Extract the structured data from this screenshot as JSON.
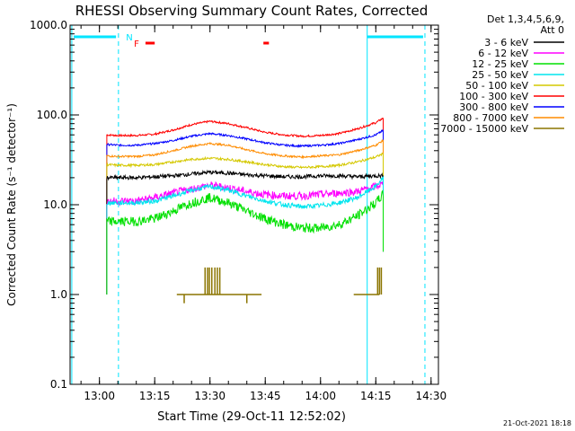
{
  "colors": {
    "background": "#ffffff",
    "axis": "#000000",
    "marker": "#00e5ff",
    "flare_flag": "#ff0000"
  },
  "chart_data": {
    "type": "line",
    "title": "RHESSI Observing Summary Count Rates, Corrected",
    "xlabel": "Start Time (29-Oct-11 12:52:02)",
    "ylabel": "Corrected Count Rate (s⁻¹ detector⁻¹)",
    "y_scale": "log",
    "ylim": [
      0.1,
      1000
    ],
    "xlim": [
      "12:52:02",
      "14:32:00"
    ],
    "grid": false,
    "x_ticks": [
      "13:00",
      "13:15",
      "13:30",
      "13:45",
      "14:00",
      "14:15",
      "14:30"
    ],
    "y_ticks": [
      "0.1",
      "1.0",
      "10.0",
      "100.0",
      "1000.0"
    ],
    "legend": {
      "placement": "right",
      "header_lines": [
        "Det 1,3,4,5,6,9,",
        "Att 0"
      ]
    },
    "flags": {
      "night_label": "N",
      "flare_label": "F"
    },
    "footer_date": "21-Oct-2021 18:18",
    "x_times": [
      "13:02",
      "13:05",
      "13:10",
      "13:15",
      "13:20",
      "13:25",
      "13:30",
      "13:35",
      "13:40",
      "13:45",
      "13:50",
      "13:55",
      "14:00",
      "14:05",
      "14:10",
      "14:15",
      "14:17"
    ],
    "series": [
      {
        "name": "3 - 6 keV",
        "color": "#000000",
        "noise": 0.05,
        "values": [
          20,
          20,
          20,
          20.5,
          21,
          22,
          23,
          22.5,
          21.5,
          21,
          20.5,
          20.5,
          21,
          21,
          20.5,
          21,
          21
        ]
      },
      {
        "name": "6 - 12 keV",
        "color": "#ff00ff",
        "noise": 0.1,
        "values": [
          11,
          11,
          11,
          12,
          13.5,
          15,
          16.5,
          15.5,
          14,
          13,
          12.5,
          12.5,
          13,
          13.5,
          14,
          16,
          17
        ]
      },
      {
        "name": "12 - 25 keV",
        "color": "#00e000",
        "noise": 0.12,
        "values": [
          6.5,
          6.5,
          6.5,
          7,
          8.5,
          10.5,
          12,
          10.5,
          8.5,
          7,
          6,
          5.5,
          5.5,
          6,
          7.5,
          10.5,
          13
        ]
      },
      {
        "name": "25 - 50 keV",
        "color": "#00e5ee",
        "noise": 0.06,
        "values": [
          10.5,
          10.5,
          10.5,
          11,
          12.5,
          14.5,
          16,
          14.5,
          12.5,
          11,
          10,
          9.5,
          9.8,
          10.5,
          12,
          16,
          20
        ]
      },
      {
        "name": "50 - 100 keV",
        "color": "#d4c800",
        "noise": 0.03,
        "values": [
          28,
          27.5,
          27.5,
          28,
          30,
          32,
          33,
          32,
          30,
          28,
          26.5,
          26,
          26.5,
          27.5,
          30,
          34,
          37
        ]
      },
      {
        "name": "100 - 300 keV",
        "color": "#ff0000",
        "noise": 0.025,
        "values": [
          60,
          59,
          59,
          61,
          68,
          78,
          85,
          80,
          72,
          64,
          60,
          58,
          59,
          62,
          70,
          82,
          92
        ]
      },
      {
        "name": "300 - 800 keV",
        "color": "#0000ff",
        "noise": 0.025,
        "values": [
          47,
          46,
          46,
          48,
          52,
          58,
          62,
          59,
          54,
          49,
          46,
          45,
          46,
          48,
          53,
          60,
          67
        ]
      },
      {
        "name": "800 - 7000 keV",
        "color": "#ff8c00",
        "noise": 0.025,
        "values": [
          35,
          34.5,
          34.5,
          36,
          40,
          45,
          48,
          46,
          41,
          37,
          35,
          34,
          35,
          36,
          40,
          46,
          52
        ]
      },
      {
        "name": "7000 - 15000 keV",
        "color": "#8b7500",
        "noise": 0,
        "values": []
      }
    ]
  }
}
